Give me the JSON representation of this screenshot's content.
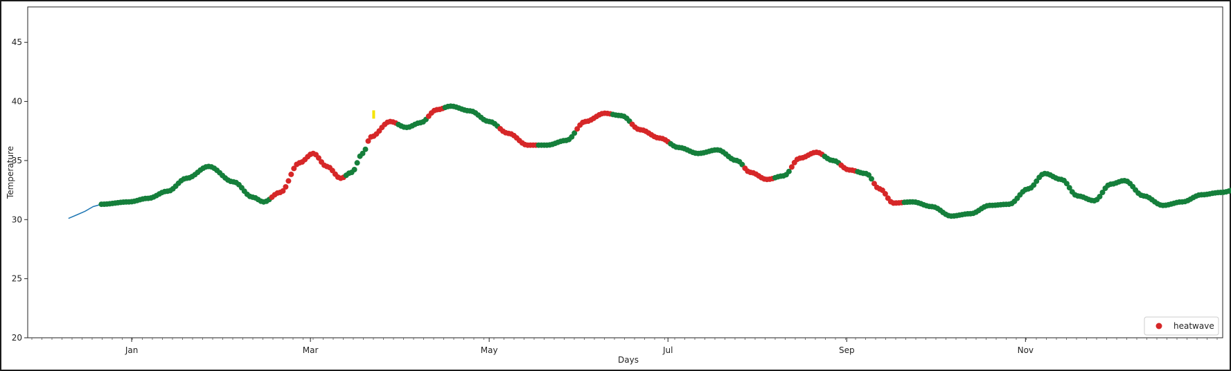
{
  "chart_data": {
    "type": "scatter",
    "title": "",
    "xlabel": "Days",
    "ylabel": "Temperature",
    "ylim": [
      20,
      48
    ],
    "y_ticks": [
      20,
      25,
      30,
      35,
      40,
      45
    ],
    "x_ticks": [
      "Jan",
      "Mar",
      "May",
      "Jul",
      "Sep",
      "Nov"
    ],
    "grid": false,
    "legend_position": "bottom-right",
    "colors": {
      "line": "#1f77b4",
      "normal": "#157f3b",
      "heatwave": "#d62728",
      "marker": "#f5e400"
    },
    "legend": [
      {
        "label": "heatwave",
        "color": "#d62728"
      }
    ],
    "line_series": {
      "x": [
        "2023-12-09",
        "2023-12-12",
        "2023-12-15",
        "2023-12-18",
        "2023-12-21"
      ],
      "y": [
        30.1,
        30.4,
        30.7,
        31.1,
        31.3
      ]
    },
    "anchors": [
      [
        "2023-12-21",
        31.3,
        "n"
      ],
      [
        "2023-12-31",
        31.5,
        "n"
      ],
      [
        "2024-01-07",
        31.8,
        "n"
      ],
      [
        "2024-01-14",
        32.4,
        "n"
      ],
      [
        "2024-01-21",
        33.5,
        "n"
      ],
      [
        "2024-01-29",
        34.5,
        "n"
      ],
      [
        "2024-02-07",
        33.2,
        "n"
      ],
      [
        "2024-02-14",
        31.9,
        "n"
      ],
      [
        "2024-02-18",
        31.5,
        "n"
      ],
      [
        "2024-02-24",
        32.3,
        "h"
      ],
      [
        "2024-03-02",
        34.8,
        "h"
      ],
      [
        "2024-03-07",
        35.6,
        "h"
      ],
      [
        "2024-03-12",
        34.5,
        "h"
      ],
      [
        "2024-03-17",
        33.5,
        "h"
      ],
      [
        "2024-03-21",
        34.0,
        "n"
      ],
      [
        "2024-03-25",
        35.6,
        "n"
      ],
      [
        "2024-03-28",
        37.0,
        "h"
      ],
      [
        "2024-04-04",
        38.3,
        "h"
      ],
      [
        "2024-04-10",
        37.8,
        "n"
      ],
      [
        "2024-04-15",
        38.2,
        "n"
      ],
      [
        "2024-04-21",
        39.3,
        "h"
      ],
      [
        "2024-04-26",
        39.6,
        "n"
      ],
      [
        "2024-05-03",
        39.2,
        "n"
      ],
      [
        "2024-05-10",
        38.3,
        "n"
      ],
      [
        "2024-05-17",
        37.3,
        "h"
      ],
      [
        "2024-05-24",
        36.3,
        "h"
      ],
      [
        "2024-05-31",
        36.3,
        "n"
      ],
      [
        "2024-06-07",
        36.7,
        "n"
      ],
      [
        "2024-06-14",
        38.3,
        "h"
      ],
      [
        "2024-06-21",
        39.0,
        "h"
      ],
      [
        "2024-06-27",
        38.8,
        "n"
      ],
      [
        "2024-07-04",
        37.6,
        "h"
      ],
      [
        "2024-07-11",
        36.9,
        "h"
      ],
      [
        "2024-07-18",
        36.1,
        "n"
      ],
      [
        "2024-07-25",
        35.6,
        "n"
      ],
      [
        "2024-08-01",
        35.9,
        "n"
      ],
      [
        "2024-08-08",
        35.0,
        "n"
      ],
      [
        "2024-08-13",
        34.0,
        "h"
      ],
      [
        "2024-08-19",
        33.4,
        "h"
      ],
      [
        "2024-08-25",
        33.7,
        "n"
      ],
      [
        "2024-08-31",
        35.2,
        "h"
      ],
      [
        "2024-09-06",
        35.7,
        "h"
      ],
      [
        "2024-09-12",
        35.0,
        "n"
      ],
      [
        "2024-09-18",
        34.2,
        "h"
      ],
      [
        "2024-09-24",
        33.9,
        "n"
      ],
      [
        "2024-09-29",
        32.6,
        "h"
      ],
      [
        "2024-10-04",
        31.4,
        "h"
      ],
      [
        "2024-10-11",
        31.5,
        "n"
      ],
      [
        "2024-10-18",
        31.1,
        "n"
      ],
      [
        "2024-10-25",
        30.3,
        "n"
      ],
      [
        "2024-11-01",
        30.5,
        "n"
      ],
      [
        "2024-11-08",
        31.2,
        "n"
      ],
      [
        "2024-11-15",
        31.3,
        "n"
      ],
      [
        "2024-11-22",
        32.6,
        "n"
      ],
      [
        "2024-11-28",
        33.9,
        "n"
      ],
      [
        "2024-12-04",
        33.4,
        "n"
      ],
      [
        "2024-12-10",
        32.0,
        "n"
      ],
      [
        "2024-12-16",
        31.6,
        "n"
      ],
      [
        "2024-12-22",
        33.0,
        "n"
      ],
      [
        "2024-12-27",
        33.3,
        "n"
      ],
      [
        "2025-01-03",
        32.0,
        "n"
      ],
      [
        "2025-01-10",
        31.2,
        "n"
      ],
      [
        "2025-01-17",
        31.5,
        "n"
      ],
      [
        "2025-01-24",
        32.1,
        "n"
      ],
      [
        "2025-01-31",
        32.3,
        "n"
      ],
      [
        "2025-02-07",
        32.6,
        "n"
      ],
      [
        "2025-02-14",
        32.9,
        "n"
      ],
      [
        "2025-02-21",
        33.1,
        "n"
      ],
      [
        "2025-02-28",
        33.5,
        "n"
      ],
      [
        "2025-03-04",
        33.8,
        "n"
      ],
      [
        "2025-03-11",
        33.3,
        "n"
      ],
      [
        "2025-03-18",
        32.5,
        "n"
      ],
      [
        "2025-03-25",
        32.1,
        "n"
      ],
      [
        "2025-04-01",
        31.9,
        "n"
      ],
      [
        "2025-04-08",
        31.0,
        "n"
      ],
      [
        "2025-04-15",
        29.5,
        "n"
      ],
      [
        "2025-04-22",
        28.7,
        "n"
      ],
      [
        "2025-04-29",
        28.3,
        "n"
      ],
      [
        "2025-05-06",
        29.3,
        "n"
      ],
      [
        "2025-05-13",
        30.7,
        "n"
      ],
      [
        "2025-05-20",
        31.2,
        "n"
      ],
      [
        "2025-05-27",
        31.1,
        "n"
      ],
      [
        "2025-06-03",
        31.3,
        "n"
      ],
      [
        "2025-06-10",
        32.2,
        "n"
      ],
      [
        "2025-06-17",
        31.8,
        "n"
      ],
      [
        "2025-06-24",
        30.6,
        "n"
      ],
      [
        "2025-07-01",
        31.3,
        "n"
      ],
      [
        "2025-07-08",
        31.6,
        "n"
      ],
      [
        "2025-07-15",
        30.8,
        "n"
      ],
      [
        "2025-07-22",
        31.0,
        "n"
      ],
      [
        "2025-07-29",
        31.9,
        "n"
      ]
    ],
    "highlight_marker": {
      "x": "2024-03-29",
      "y": 38.9
    }
  }
}
